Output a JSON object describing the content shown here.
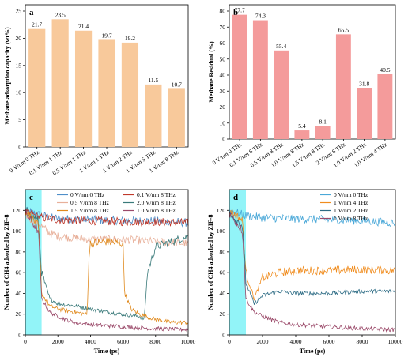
{
  "chart_data": [
    {
      "panel": "a",
      "type": "bar",
      "categories": [
        "0 V/nm 0 THz",
        "0.1 V/nm 1 THz",
        "0.5 V/nm 1 THz",
        "1 V/nm 1 THz",
        "1 V/nm 2 THz",
        "1 V/nm 5 THz",
        "1 V/nm 8 THz"
      ],
      "values": [
        21.7,
        23.5,
        21.4,
        19.7,
        19.2,
        11.5,
        10.7
      ],
      "data_labels": [
        "21.7",
        "23.5",
        "21.4",
        "19.7",
        "19.2",
        "11.5",
        "10.7"
      ],
      "ylabel": "Methane adsorption capacity (wt%)",
      "ylim": [
        0,
        25
      ],
      "yticks": [
        "0",
        "5",
        "10",
        "15",
        "20",
        "25"
      ],
      "color": "#f8c99b"
    },
    {
      "panel": "b",
      "type": "bar",
      "categories": [
        "0 V/nm 0 THz",
        "0.1 V/nm 8 THz",
        "0.5 V/nm 8 THz",
        "1.0 V/nm 8 THz",
        "1.5 V/nm 8 THz",
        "2 V/nm 8 THz",
        "1.0 V/nm 2 THz",
        "1.0 V/nm 4 THz"
      ],
      "values": [
        77.7,
        74.3,
        55.4,
        5.4,
        8.1,
        65.5,
        31.8,
        40.5
      ],
      "data_labels": [
        "77.7",
        "74.3",
        "55.4",
        "5.4",
        "8.1",
        "65.5",
        "31.8",
        "40.5"
      ],
      "ylabel": "Methane Residual (%)",
      "ylim": [
        0,
        80
      ],
      "yticks": [
        "0",
        "10",
        "20",
        "30",
        "40",
        "50",
        "60",
        "70",
        "80"
      ],
      "color": "#f49b9b"
    },
    {
      "panel": "c",
      "type": "line",
      "xlabel": "Time (ps)",
      "ylabel": "Number of CH4 adsorbed by ZIF-8",
      "xlim": [
        0,
        10000
      ],
      "ylim": [
        0,
        140
      ],
      "xticks": [
        "0",
        "2000",
        "4000",
        "6000",
        "8000",
        "10000"
      ],
      "yticks": [
        "0",
        "20",
        "40",
        "60",
        "80",
        "100",
        "120"
      ],
      "shaded_x": [
        0,
        1000
      ],
      "series": [
        {
          "name": "0 V/nm 0 THz",
          "color": "#4f8fc9",
          "points": [
            [
              0,
              120
            ],
            [
              1000,
              115
            ],
            [
              2000,
              112
            ],
            [
              4000,
              111
            ],
            [
              6000,
              110
            ],
            [
              8000,
              110
            ],
            [
              10000,
              108
            ]
          ]
        },
        {
          "name": "0.1 V/nm 8 THz",
          "color": "#c0392b",
          "points": [
            [
              0,
              118
            ],
            [
              1000,
              113
            ],
            [
              2000,
              111
            ],
            [
              4000,
              110
            ],
            [
              6000,
              109
            ],
            [
              8000,
              109
            ],
            [
              10000,
              108
            ]
          ]
        },
        {
          "name": "0.5 V/nm 8 THz",
          "color": "#e8b09a",
          "points": [
            [
              0,
              115
            ],
            [
              1000,
              105
            ],
            [
              1500,
              98
            ],
            [
              2000,
              95
            ],
            [
              4000,
              92
            ],
            [
              6000,
              92
            ],
            [
              8000,
              90
            ],
            [
              10000,
              88
            ]
          ]
        },
        {
          "name": "2.0 V/nm 8 THz",
          "color": "#3a7a7a",
          "points": [
            [
              0,
              120
            ],
            [
              800,
              110
            ],
            [
              1000,
              60
            ],
            [
              1500,
              35
            ],
            [
              2000,
              30
            ],
            [
              3000,
              28
            ],
            [
              4000,
              25
            ],
            [
              5000,
              22
            ],
            [
              6000,
              20
            ],
            [
              7000,
              18
            ],
            [
              7300,
              15
            ],
            [
              7500,
              60
            ],
            [
              8000,
              85
            ],
            [
              9000,
              90
            ],
            [
              10000,
              95
            ]
          ]
        },
        {
          "name": "1.5 V/nm 8 THz",
          "color": "#e08a1e",
          "points": [
            [
              0,
              120
            ],
            [
              800,
              105
            ],
            [
              1000,
              40
            ],
            [
              1500,
              28
            ],
            [
              2000,
              25
            ],
            [
              3000,
              22
            ],
            [
              3800,
              20
            ],
            [
              3900,
              75
            ],
            [
              4000,
              88
            ],
            [
              5000,
              90
            ],
            [
              6000,
              88
            ],
            [
              6100,
              40
            ],
            [
              6500,
              25
            ],
            [
              7000,
              20
            ],
            [
              8000,
              15
            ],
            [
              9000,
              12
            ],
            [
              10000,
              12
            ]
          ]
        },
        {
          "name": "1.0 V/nm 8 THz",
          "color": "#9b4a6a",
          "points": [
            [
              0,
              118
            ],
            [
              800,
              100
            ],
            [
              1000,
              35
            ],
            [
              1500,
              22
            ],
            [
              2000,
              18
            ],
            [
              3000,
              12
            ],
            [
              4000,
              10
            ],
            [
              6000,
              8
            ],
            [
              8000,
              6
            ],
            [
              10000,
              5
            ]
          ]
        }
      ]
    },
    {
      "panel": "d",
      "type": "line",
      "xlabel": "Time (ps)",
      "ylabel": "Number of CH4 adsorbed by ZIF-8",
      "xlim": [
        0,
        10000
      ],
      "ylim": [
        0,
        140
      ],
      "xticks": [
        "0",
        "2000",
        "4000",
        "6000",
        "8000",
        "10000"
      ],
      "yticks": [
        "0",
        "20",
        "40",
        "60",
        "80",
        "100",
        "120"
      ],
      "shaded_x": [
        0,
        1000
      ],
      "series": [
        {
          "name": "0 V/nm 0 THz",
          "color": "#4aa8d8",
          "points": [
            [
              0,
              120
            ],
            [
              1000,
              115
            ],
            [
              2000,
              113
            ],
            [
              4000,
              112
            ],
            [
              6000,
              111
            ],
            [
              8000,
              110
            ],
            [
              10000,
              108
            ]
          ]
        },
        {
          "name": "1 V/nm 4 THz",
          "color": "#f08c1e",
          "points": [
            [
              0,
              120
            ],
            [
              800,
              110
            ],
            [
              1000,
              60
            ],
            [
              1500,
              35
            ],
            [
              2000,
              55
            ],
            [
              3000,
              60
            ],
            [
              4000,
              62
            ],
            [
              6000,
              62
            ],
            [
              8000,
              63
            ],
            [
              10000,
              62
            ]
          ]
        },
        {
          "name": "1 V/nm 2 THz",
          "color": "#2c6b84",
          "points": [
            [
              0,
              118
            ],
            [
              800,
              105
            ],
            [
              1000,
              50
            ],
            [
              1500,
              30
            ],
            [
              2000,
              38
            ],
            [
              3000,
              42
            ],
            [
              4000,
              40
            ],
            [
              6000,
              40
            ],
            [
              8000,
              42
            ],
            [
              10000,
              42
            ]
          ]
        },
        {
          "name": "1 V/nm 8 THz",
          "color": "#9b4a6a",
          "points": [
            [
              0,
              118
            ],
            [
              800,
              100
            ],
            [
              1000,
              35
            ],
            [
              1500,
              22
            ],
            [
              2000,
              18
            ],
            [
              3000,
              12
            ],
            [
              4000,
              10
            ],
            [
              6000,
              8
            ],
            [
              8000,
              6
            ],
            [
              10000,
              5
            ]
          ]
        }
      ]
    }
  ]
}
